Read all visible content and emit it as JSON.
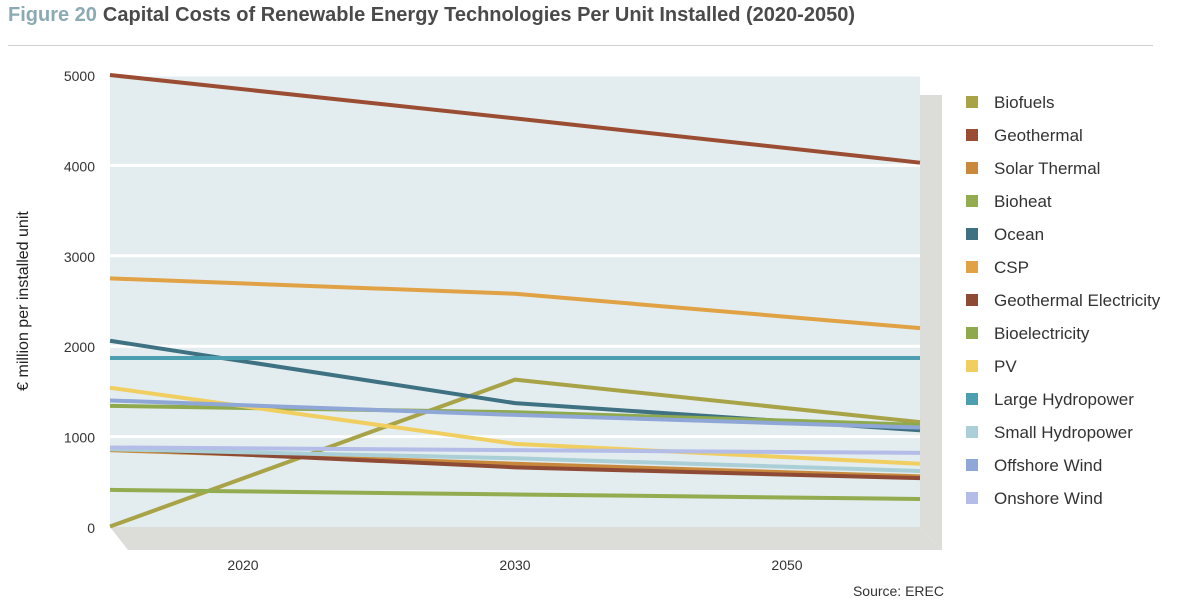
{
  "header": {
    "figure_label": "Figure 20",
    "title": "Capital Costs of Renewable Energy Technologies Per Unit Installed (2020-2050)"
  },
  "source": "Source: EREC",
  "chart_data": {
    "type": "line",
    "title": "",
    "xlabel": "",
    "ylabel": "€ million per installed unit",
    "categories": [
      "2020",
      "2030",
      "2050"
    ],
    "ylim": [
      0,
      5000
    ],
    "yticks": [
      0,
      1000,
      2000,
      3000,
      4000,
      5000
    ],
    "grid": true,
    "legend_position": "right",
    "plot_background": "#e3ecee",
    "series": [
      {
        "name": "Biofuels",
        "color": "#a8a347",
        "values": [
          5,
          1630,
          1160
        ]
      },
      {
        "name": "Geothermal",
        "color": "#9a4d33",
        "values": [
          5000,
          4520,
          4030
        ]
      },
      {
        "name": "Solar Thermal",
        "color": "#c8893c",
        "values": [
          850,
          700,
          560
        ]
      },
      {
        "name": "Bioheat",
        "color": "#93ac4f",
        "values": [
          410,
          360,
          310
        ]
      },
      {
        "name": "Ocean",
        "color": "#3e7283",
        "values": [
          2060,
          1370,
          1070
        ]
      },
      {
        "name": "CSP",
        "color": "#e0a245",
        "values": [
          2750,
          2580,
          2200
        ]
      },
      {
        "name": "Geothermal Electricity",
        "color": "#8e4a34",
        "values": [
          870,
          660,
          540
        ]
      },
      {
        "name": "Bioelectricity",
        "color": "#8fa94d",
        "values": [
          1340,
          1270,
          1130
        ]
      },
      {
        "name": "PV",
        "color": "#f0ce60",
        "values": [
          1540,
          920,
          700
        ]
      },
      {
        "name": "Large Hydropower",
        "color": "#4c9fb0",
        "values": [
          1870,
          1870,
          1870
        ]
      },
      {
        "name": "Small Hydropower",
        "color": "#aacfd7",
        "values": [
          860,
          760,
          620
        ]
      },
      {
        "name": "Offshore Wind",
        "color": "#8fa7d6",
        "values": [
          1400,
          1240,
          1100
        ]
      },
      {
        "name": "Onshore Wind",
        "color": "#b3bde7",
        "values": [
          880,
          850,
          820
        ]
      }
    ]
  }
}
